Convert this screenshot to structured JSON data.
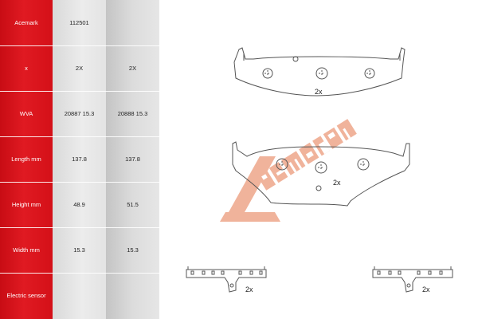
{
  "table": {
    "rows": [
      {
        "label": "Acemark",
        "v1": "112501",
        "v2": ""
      },
      {
        "label": "x",
        "v1": "2X",
        "v2": "2X"
      },
      {
        "label": "WVA",
        "v1": "20887 15.3",
        "v2": "20888 15.3"
      },
      {
        "label": "Length mm",
        "v1": "137.8",
        "v2": "137.8"
      },
      {
        "label": "Height mm",
        "v1": "48.9",
        "v2": "51.5"
      },
      {
        "label": "Width mm",
        "v1": "15.3",
        "v2": "15.3"
      },
      {
        "label": "Electric sensor",
        "v1": "",
        "v2": ""
      }
    ]
  },
  "drawing": {
    "pad1_qty": "2x",
    "pad2_qty": "2x",
    "clip1_qty": "2x",
    "clip2_qty": "2x",
    "watermark": "Acemark",
    "watermark_color": "#e8a080",
    "line_color": "#555555"
  },
  "colors": {
    "label_red": "#d41018",
    "cell_gray": "#e6e6e6"
  }
}
